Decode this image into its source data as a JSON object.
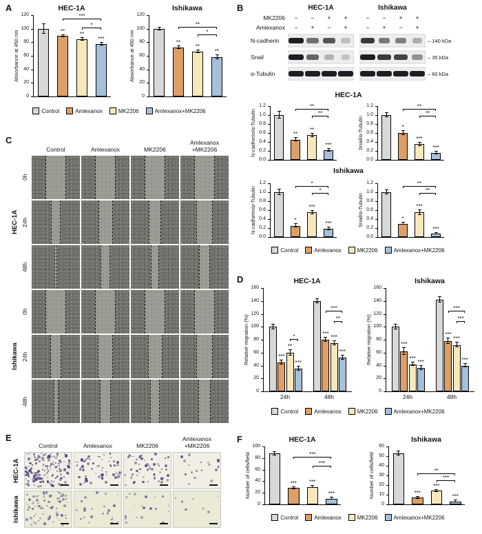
{
  "panel_labels": {
    "a": "A",
    "b": "B",
    "c": "C",
    "d": "D",
    "e": "E",
    "f": "F"
  },
  "group_colors": [
    "#d8d8d8",
    "#dd9f67",
    "#f6e8bb",
    "#a7c0d9"
  ],
  "legend": {
    "items": [
      {
        "label": "Control",
        "color": "#d8d8d8"
      },
      {
        "label": "Amlexanox",
        "color": "#dd9f67"
      },
      {
        "label": "MK2206",
        "color": "#f6e8bb"
      },
      {
        "label": "Amlexanox+MK2206",
        "color": "#a7c0d9"
      }
    ]
  },
  "chart_data": [
    {
      "id": "a-hec1a",
      "type": "bar",
      "title": "HEC-1A",
      "ylabel": "Absorbance at 450 nm",
      "ylim": [
        0,
        120
      ],
      "ystep": 20,
      "categories": [
        "Control",
        "Amlexanox",
        "MK2206",
        "Amlexanox+MK2206"
      ],
      "values": [
        100,
        89,
        84,
        77
      ],
      "errors": [
        7,
        2,
        2,
        2
      ],
      "sig": [
        "",
        "**",
        "**",
        "***"
      ],
      "brackets": [
        {
          "from": 1,
          "to": 3,
          "label": "***",
          "y": 112
        },
        {
          "from": 2,
          "to": 3,
          "label": "*",
          "y": 99
        }
      ]
    },
    {
      "id": "a-ishikawa",
      "type": "bar",
      "title": "Ishikawa",
      "ylabel": "Absorbance at 450 nm",
      "ylim": [
        0,
        120
      ],
      "ystep": 20,
      "categories": [
        "Control",
        "Amlexanox",
        "MK2206",
        "Amlexanox+MK2206"
      ],
      "values": [
        100,
        72,
        66,
        58
      ],
      "errors": [
        2,
        2,
        2,
        3
      ],
      "sig": [
        "",
        "**",
        "**",
        "**"
      ],
      "brackets": [
        {
          "from": 1,
          "to": 3,
          "label": "**",
          "y": 100
        },
        {
          "from": 2,
          "to": 3,
          "label": "*",
          "y": 88
        }
      ]
    },
    {
      "id": "b-hec1a-ncadherin",
      "type": "bar",
      "ylabel": "N-cadherin/α-Tubulin",
      "ylim": [
        0,
        1.2
      ],
      "ystep": 0.2,
      "categories": [
        "Control",
        "Amlexanox",
        "MK2206",
        "Amlexanox+MK2206"
      ],
      "values": [
        1.0,
        0.45,
        0.55,
        0.22
      ],
      "errors": [
        0.08,
        0.04,
        0.04,
        0.03
      ],
      "sig": [
        "",
        "**",
        "**",
        "***"
      ],
      "brackets": [
        {
          "from": 1,
          "to": 3,
          "label": "**",
          "y": 1.1
        },
        {
          "from": 2,
          "to": 3,
          "label": "**",
          "y": 0.94
        }
      ]
    },
    {
      "id": "b-hec1a-snail",
      "type": "bar",
      "ylabel": "Snail/α-Tubulin",
      "ylim": [
        0,
        1.2
      ],
      "ystep": 0.2,
      "categories": [
        "Control",
        "Amlexanox",
        "MK2206",
        "Amlexanox+MK2206"
      ],
      "values": [
        1.0,
        0.6,
        0.35,
        0.15
      ],
      "errors": [
        0.05,
        0.05,
        0.04,
        0.03
      ],
      "sig": [
        "",
        "*",
        "***",
        "***"
      ],
      "brackets": [
        {
          "from": 1,
          "to": 3,
          "label": "**",
          "y": 1.1
        },
        {
          "from": 2,
          "to": 3,
          "label": "**",
          "y": 0.94
        }
      ]
    },
    {
      "id": "b-ishikawa-ncadherin",
      "type": "bar",
      "ylabel": "N-cadherin/α-Tubulin",
      "ylim": [
        0,
        1.2
      ],
      "ystep": 0.2,
      "categories": [
        "Control",
        "Amlexanox",
        "MK2206",
        "Amlexanox+MK2206"
      ],
      "values": [
        1.0,
        0.25,
        0.55,
        0.18
      ],
      "errors": [
        0.06,
        0.04,
        0.04,
        0.03
      ],
      "sig": [
        "",
        "*",
        "***",
        "***"
      ],
      "brackets": [
        {
          "from": 1,
          "to": 3,
          "label": "*",
          "y": 1.1
        },
        {
          "from": 2,
          "to": 3,
          "label": "*",
          "y": 0.94
        }
      ]
    },
    {
      "id": "b-ishikawa-snail",
      "type": "bar",
      "ylabel": "Snail/α-Tubulin",
      "ylim": [
        0,
        1.2
      ],
      "ystep": 0.2,
      "categories": [
        "Control",
        "Amlexanox",
        "MK2206",
        "Amlexanox+MK2206"
      ],
      "values": [
        1.0,
        0.3,
        0.55,
        0.08
      ],
      "errors": [
        0.05,
        0.03,
        0.05,
        0.02
      ],
      "sig": [
        "",
        "*",
        "***",
        "***"
      ],
      "brackets": [
        {
          "from": 1,
          "to": 3,
          "label": "**",
          "y": 1.1
        },
        {
          "from": 2,
          "to": 3,
          "label": "**",
          "y": 0.94
        }
      ]
    },
    {
      "id": "d-hec1a",
      "type": "bar",
      "title": "HEC-1A",
      "ylabel": "Relative migration (%)",
      "ylim": [
        0,
        160
      ],
      "ystep": 20,
      "categories": [
        "24h",
        "48h"
      ],
      "xlabels": true,
      "series": [
        {
          "name": "Control",
          "values": [
            100,
            140
          ],
          "errors": [
            4,
            3
          ]
        },
        {
          "name": "Amlexanox",
          "values": [
            45,
            80
          ],
          "errors": [
            3,
            3
          ]
        },
        {
          "name": "MK2206",
          "values": [
            60,
            75
          ],
          "errors": [
            4,
            3
          ]
        },
        {
          "name": "Amlexanox+MK2206",
          "values": [
            35,
            52
          ],
          "errors": [
            3,
            3
          ]
        }
      ],
      "sig": [
        "",
        "***",
        "**",
        "***",
        "",
        "***",
        "***",
        "***"
      ],
      "brackets": [
        {
          "from": 2,
          "to": 3,
          "label": "*",
          "y": 78
        },
        {
          "from": 5,
          "to": 7,
          "label": "***",
          "y": 122
        },
        {
          "from": 6,
          "to": 7,
          "label": "**",
          "y": 106
        }
      ]
    },
    {
      "id": "d-ishikawa",
      "type": "bar",
      "title": "Ishikawa",
      "ylabel": "Relative migration (%)",
      "ylim": [
        0,
        160
      ],
      "ystep": 20,
      "categories": [
        "24h",
        "48h"
      ],
      "xlabels": true,
      "series": [
        {
          "name": "Control",
          "values": [
            100,
            142
          ],
          "errors": [
            4,
            4
          ]
        },
        {
          "name": "Amlexanox",
          "values": [
            62,
            78
          ],
          "errors": [
            5,
            4
          ]
        },
        {
          "name": "MK2206",
          "values": [
            42,
            72
          ],
          "errors": [
            3,
            4
          ]
        },
        {
          "name": "Amlexanox+MK2206",
          "values": [
            36,
            40
          ],
          "errors": [
            3,
            3
          ]
        }
      ],
      "sig": [
        "",
        "***",
        "***",
        "***",
        "",
        "***",
        "***",
        "***"
      ],
      "brackets": [
        {
          "from": 5,
          "to": 7,
          "label": "***",
          "y": 122
        },
        {
          "from": 6,
          "to": 7,
          "label": "***",
          "y": 106
        }
      ]
    },
    {
      "id": "f-hec1a",
      "type": "bar",
      "title": "HEC-1A",
      "ylabel": "Number of cells/field",
      "ylim": [
        0,
        100
      ],
      "ystep": 20,
      "categories": [
        "Control",
        "Amlexanox",
        "MK2206",
        "Amlexanox+MK2206"
      ],
      "values": [
        88,
        28,
        30,
        10
      ],
      "errors": [
        3,
        2,
        2,
        2
      ],
      "sig": [
        "",
        "***",
        "***",
        "***"
      ],
      "brackets": [
        {
          "from": 1,
          "to": 3,
          "label": "***",
          "y": 78
        },
        {
          "from": 2,
          "to": 3,
          "label": "***",
          "y": 63
        }
      ]
    },
    {
      "id": "f-ishikawa",
      "type": "bar",
      "title": "Ishikawa",
      "ylabel": "Number of cells/field",
      "ylim": [
        0,
        60
      ],
      "ystep": 10,
      "categories": [
        "Control",
        "Amlexanox",
        "MK2206",
        "Amlexanox+MK2206"
      ],
      "values": [
        53,
        7,
        14,
        3
      ],
      "errors": [
        2,
        1,
        1,
        1
      ],
      "sig": [
        "",
        "***",
        "***",
        "***"
      ],
      "brackets": [
        {
          "from": 1,
          "to": 3,
          "label": "**",
          "y": 30
        },
        {
          "from": 2,
          "to": 3,
          "label": "***",
          "y": 23
        }
      ]
    }
  ],
  "panel_b": {
    "sections": [
      {
        "title": "HEC-1A"
      },
      {
        "title": "Ishikawa"
      }
    ],
    "blot": {
      "cell_lines": [
        "HEC-1A",
        "Ishikawa"
      ],
      "treatments": [
        {
          "name": "MK2206",
          "signs": [
            "−",
            "−",
            "+",
            "+",
            "−",
            "−",
            "+",
            "+"
          ]
        },
        {
          "name": "Amlexanox",
          "signs": [
            "−",
            "+",
            "−",
            "+",
            "−",
            "+",
            "−",
            "+"
          ]
        }
      ],
      "proteins": [
        {
          "name": "N-cadherin",
          "kda": "140 kDa",
          "bands": [
            [
              1,
              0.55,
              0.7,
              0.12
            ],
            [
              0.85,
              0.5,
              0.45,
              0.2
            ]
          ]
        },
        {
          "name": "Snail",
          "kda": "35 kDa",
          "bands": [
            [
              1,
              0.6,
              0.18,
              0.08
            ],
            [
              1,
              0.85,
              0.8,
              0.35
            ]
          ]
        },
        {
          "name": "α-Tubulin",
          "kda": "60 kDa",
          "bands": [
            [
              1,
              1,
              1,
              1
            ],
            [
              1,
              1,
              1,
              1
            ]
          ]
        }
      ],
      "band_color": "#16161c",
      "box_bg": "#ededed"
    }
  },
  "wound": {
    "columns": [
      "Control",
      "Amlexanox",
      "MK2206",
      "Amlexanox +MK2206"
    ],
    "cell_color": "#70706a",
    "gap_color": "#9c9c94",
    "row_groups": [
      {
        "cell_line": "HEC-1A",
        "rows": [
          {
            "time": "0h",
            "gaps": [
              0.42,
              0.42,
              0.42,
              0.42
            ]
          },
          {
            "time": "24h",
            "gaps": [
              0.2,
              0.3,
              0.27,
              0.33
            ]
          },
          {
            "time": "48h",
            "gaps": [
              0.06,
              0.2,
              0.16,
              0.24
            ]
          }
        ]
      },
      {
        "cell_line": "Ishikawa",
        "rows": [
          {
            "time": "0h",
            "gaps": [
              0.42,
              0.42,
              0.42,
              0.42
            ]
          },
          {
            "time": "24h",
            "gaps": [
              0.24,
              0.32,
              0.3,
              0.34
            ]
          },
          {
            "time": "48h",
            "gaps": [
              0.1,
              0.22,
              0.2,
              0.27
            ]
          }
        ]
      }
    ]
  },
  "transwell": {
    "columns": [
      "Control",
      "Amlexanox",
      "MK2206",
      "Amlexanox +MK2206"
    ],
    "dot_color": "#4b3d7f",
    "rows": [
      {
        "cell_line": "HEC-1A",
        "bg": "#f1efe4",
        "densities": [
          150,
          55,
          60,
          18
        ]
      },
      {
        "cell_line": "Ishikawa",
        "bg": "#eaead6",
        "densities": [
          70,
          22,
          20,
          8
        ]
      }
    ]
  }
}
